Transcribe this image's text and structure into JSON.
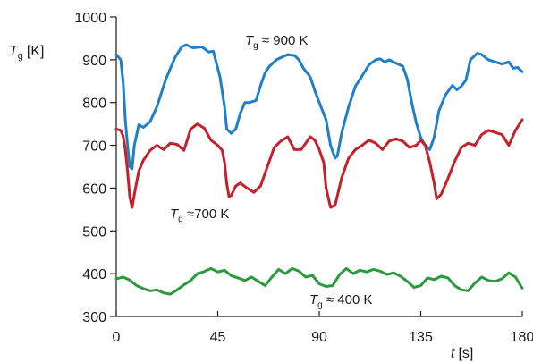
{
  "chart_data": {
    "type": "line",
    "ylabel": {
      "symbol": "T",
      "sub": "g",
      "unit": "[K]"
    },
    "xlabel": {
      "symbol": "t",
      "unit": "[s]"
    },
    "xlim": [
      0,
      180
    ],
    "ylim": [
      300,
      1000
    ],
    "xticks": [
      0,
      45,
      90,
      135,
      180
    ],
    "yticks": [
      300,
      400,
      500,
      600,
      700,
      800,
      900,
      1000
    ],
    "grid": false,
    "series": [
      {
        "annotation": {
          "prefix": "T",
          "sub": "g",
          "text": " ≈ 900 K"
        },
        "color": "#1f7fc8",
        "x": [
          0,
          2,
          3,
          4,
          5,
          6,
          7,
          8,
          10,
          12,
          15,
          18,
          22,
          26,
          29,
          31,
          34,
          38,
          41,
          43,
          46,
          48,
          49,
          51,
          53,
          55,
          57,
          59,
          62,
          64,
          66,
          68,
          71,
          73,
          76,
          79,
          81,
          83,
          86,
          88,
          90,
          93,
          95,
          97,
          98,
          100,
          103,
          106,
          109,
          112,
          115,
          117,
          119,
          121,
          124,
          127,
          129,
          131,
          133,
          135,
          137,
          139,
          141,
          143,
          146,
          149,
          151,
          153,
          155,
          157,
          160,
          162,
          165,
          168,
          171,
          174,
          176,
          178,
          180
        ],
        "y": [
          912,
          900,
          850,
          760,
          700,
          650,
          645,
          700,
          748,
          742,
          755,
          790,
          855,
          905,
          930,
          935,
          928,
          930,
          918,
          920,
          860,
          790,
          738,
          728,
          738,
          775,
          800,
          800,
          805,
          840,
          870,
          885,
          900,
          905,
          912,
          910,
          900,
          880,
          860,
          828,
          800,
          760,
          700,
          670,
          675,
          730,
          790,
          838,
          862,
          888,
          900,
          902,
          895,
          900,
          892,
          885,
          855,
          800,
          752,
          718,
          700,
          690,
          720,
          780,
          818,
          840,
          830,
          838,
          852,
          900,
          915,
          912,
          900,
          895,
          890,
          895,
          880,
          882,
          872
        ]
      },
      {
        "annotation": {
          "prefix": "T",
          "sub": "g",
          "text": " ≈700 K"
        },
        "color": "#c8202a",
        "x": [
          0,
          2,
          3,
          4,
          5,
          6,
          7,
          8,
          10,
          12,
          15,
          18,
          21,
          24,
          27,
          30,
          33,
          36,
          39,
          42,
          45,
          47,
          48,
          49,
          50,
          51,
          53,
          55,
          58,
          61,
          64,
          67,
          70,
          73,
          76,
          79,
          82,
          86,
          88,
          90,
          92,
          93,
          95,
          97,
          100,
          103,
          106,
          109,
          112,
          115,
          118,
          121,
          124,
          127,
          130,
          133,
          135,
          137,
          139,
          141,
          142,
          144,
          147,
          150,
          153,
          156,
          159,
          162,
          165,
          168,
          171,
          174,
          177,
          180
        ],
        "y": [
          738,
          735,
          722,
          690,
          640,
          580,
          555,
          585,
          640,
          665,
          688,
          700,
          690,
          705,
          702,
          688,
          738,
          750,
          740,
          712,
          700,
          688,
          660,
          610,
          580,
          583,
          605,
          612,
          600,
          590,
          605,
          650,
          695,
          710,
          720,
          690,
          690,
          720,
          712,
          690,
          660,
          600,
          555,
          560,
          625,
          670,
          690,
          700,
          712,
          705,
          690,
          710,
          715,
          710,
          695,
          700,
          712,
          700,
          660,
          610,
          575,
          585,
          622,
          662,
          695,
          705,
          700,
          725,
          735,
          730,
          725,
          700,
          735,
          760
        ]
      },
      {
        "annotation": {
          "prefix": "T",
          "sub": "g",
          "text": " ≈ 400 K"
        },
        "color": "#2a9a3c",
        "x": [
          0,
          3,
          6,
          9,
          12,
          15,
          18,
          21,
          24,
          27,
          30,
          33,
          36,
          39,
          42,
          45,
          48,
          51,
          54,
          57,
          60,
          63,
          66,
          69,
          72,
          75,
          78,
          81,
          84,
          87,
          90,
          93,
          96,
          99,
          102,
          105,
          108,
          111,
          114,
          117,
          120,
          123,
          126,
          129,
          132,
          135,
          138,
          141,
          144,
          147,
          150,
          153,
          156,
          159,
          162,
          165,
          168,
          171,
          174,
          177,
          180
        ],
        "y": [
          388,
          392,
          385,
          372,
          365,
          360,
          362,
          355,
          352,
          362,
          374,
          384,
          400,
          405,
          412,
          404,
          408,
          395,
          390,
          384,
          392,
          382,
          372,
          392,
          410,
          400,
          412,
          406,
          392,
          396,
          376,
          370,
          372,
          398,
          412,
          400,
          408,
          404,
          410,
          406,
          398,
          402,
          394,
          382,
          368,
          372,
          390,
          386,
          394,
          390,
          372,
          362,
          360,
          378,
          392,
          384,
          382,
          388,
          402,
          392,
          366
        ]
      }
    ]
  }
}
